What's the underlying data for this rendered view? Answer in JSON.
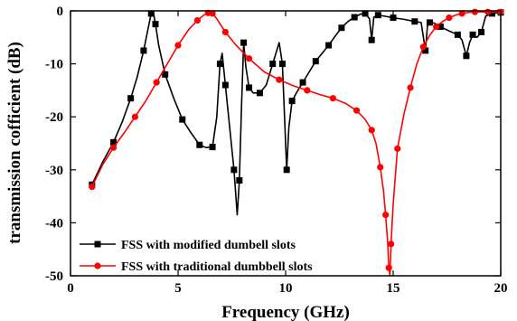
{
  "chart_data": {
    "type": "line",
    "title": "",
    "xlabel": "Frequency (GHz)",
    "ylabel": "transmission cofficient (dB)",
    "xlim": [
      0,
      20
    ],
    "ylim": [
      -50,
      0
    ],
    "xticks": [
      0,
      5,
      10,
      15,
      20
    ],
    "yticks": [
      0,
      -10,
      -20,
      -30,
      -40,
      -50
    ],
    "grid": false,
    "legend_position": "bottom-left",
    "series": [
      {
        "name": "FSS with modified dumbell slots",
        "color": "#000000",
        "marker": "square",
        "x": [
          1.0,
          1.5,
          2.0,
          2.4,
          2.8,
          3.1,
          3.4,
          3.6,
          3.75,
          3.85,
          3.95,
          4.1,
          4.4,
          4.8,
          5.2,
          5.6,
          6.0,
          6.3,
          6.6,
          6.8,
          6.95,
          7.05,
          7.2,
          7.4,
          7.6,
          7.75,
          7.85,
          7.95,
          8.05,
          8.15,
          8.3,
          8.5,
          8.8,
          9.1,
          9.4,
          9.7,
          9.85,
          9.95,
          10.05,
          10.15,
          10.3,
          10.5,
          10.8,
          11.1,
          11.4,
          11.7,
          12.0,
          12.3,
          12.6,
          12.9,
          13.2,
          13.5,
          13.7,
          13.9,
          14.0,
          14.1,
          14.3,
          14.6,
          15.0,
          15.5,
          16.0,
          16.3,
          16.5,
          16.6,
          16.7,
          16.9,
          17.2,
          17.6,
          18.0,
          18.2,
          18.4,
          18.55,
          18.7,
          18.9,
          19.1,
          19.3,
          19.6,
          19.8,
          20.0
        ],
        "y": [
          -32.8,
          -28.5,
          -24.8,
          -21.0,
          -16.5,
          -12.5,
          -7.5,
          -3.5,
          -0.5,
          -0.2,
          -2.5,
          -6.5,
          -12.0,
          -16.5,
          -20.5,
          -23.0,
          -25.3,
          -25.8,
          -25.7,
          -20.0,
          -10.0,
          -8.0,
          -14.0,
          -22.0,
          -30.0,
          -38.5,
          -32.0,
          -18.0,
          -6.0,
          -10.5,
          -14.5,
          -15.5,
          -15.5,
          -14.0,
          -10.0,
          -6.0,
          -10.0,
          -20.0,
          -30.0,
          -22.0,
          -17.0,
          -15.5,
          -13.5,
          -11.5,
          -9.5,
          -8.0,
          -6.5,
          -4.8,
          -3.2,
          -2.0,
          -1.2,
          -0.6,
          -0.5,
          -1.5,
          -5.5,
          -1.2,
          -0.8,
          -1.0,
          -1.3,
          -1.6,
          -2.0,
          -2.2,
          -7.5,
          -2.5,
          -2.2,
          -2.3,
          -3.0,
          -3.8,
          -4.5,
          -5.5,
          -8.5,
          -6.0,
          -4.5,
          -5.0,
          -4.0,
          -1.0,
          -0.5,
          -0.4,
          -0.3
        ]
      },
      {
        "name": "FSS with traditional dumbbell slots",
        "color": "#ff0000",
        "marker": "circle",
        "x": [
          1.0,
          1.5,
          2.0,
          2.5,
          3.0,
          3.5,
          4.0,
          4.5,
          5.0,
          5.5,
          5.9,
          6.2,
          6.4,
          6.5,
          6.6,
          6.8,
          7.2,
          7.7,
          8.3,
          9.0,
          9.7,
          10.4,
          11.0,
          11.6,
          12.2,
          12.8,
          13.3,
          13.7,
          14.0,
          14.2,
          14.4,
          14.55,
          14.65,
          14.75,
          14.8,
          14.85,
          14.9,
          15.0,
          15.2,
          15.5,
          15.8,
          16.1,
          16.4,
          16.7,
          17.0,
          17.3,
          17.6,
          17.9,
          18.2,
          18.5,
          18.8,
          19.1,
          19.4,
          19.7,
          20.0
        ],
        "y": [
          -33.2,
          -29.0,
          -25.8,
          -23.0,
          -20.0,
          -17.0,
          -13.5,
          -10.0,
          -6.5,
          -3.5,
          -1.8,
          -0.8,
          -0.4,
          -0.3,
          -0.5,
          -1.5,
          -4.0,
          -6.5,
          -9.0,
          -11.5,
          -13.0,
          -14.2,
          -15.0,
          -15.8,
          -16.5,
          -17.5,
          -18.8,
          -20.5,
          -22.5,
          -25.0,
          -29.5,
          -34.0,
          -38.5,
          -44.0,
          -48.5,
          -50.0,
          -44.0,
          -36.5,
          -26.0,
          -19.5,
          -14.5,
          -10.0,
          -6.8,
          -4.6,
          -3.0,
          -2.0,
          -1.3,
          -0.8,
          -0.5,
          -0.3,
          -0.2,
          -0.2,
          -0.2,
          -0.2,
          -0.2
        ]
      }
    ]
  }
}
